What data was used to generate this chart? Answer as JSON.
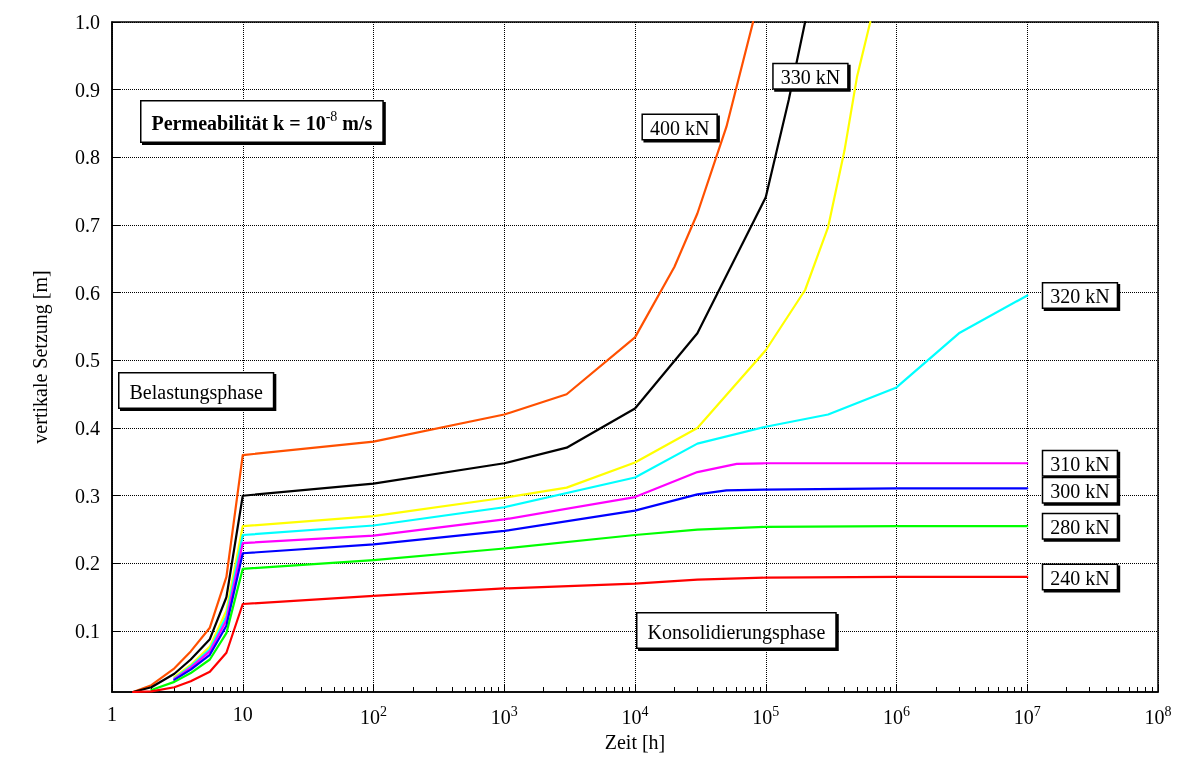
{
  "chart_data": {
    "type": "line",
    "xlabel": "Zeit [h]",
    "ylabel": "vertikale Setzung [m]",
    "log": "x",
    "grid": true,
    "legend": false,
    "marker": "none",
    "line_style": "solid",
    "xlim": [
      1,
      100000000
    ],
    "xticks": [
      1,
      10,
      {
        "value": 100,
        "label": "10$^{2}$"
      },
      {
        "value": 1000,
        "label": "10$^{3}$"
      },
      {
        "value": 10000,
        "label": "10$^{4}$"
      },
      {
        "value": 100000,
        "label": "10$^{5}$"
      },
      {
        "value": 1000000,
        "label": "10$^{6}$"
      },
      {
        "value": 10000000,
        "label": "10$^{7}$"
      },
      {
        "value": 100000000,
        "label": "10$^{8}$"
      }
    ],
    "ylim": [
      0.01,
      1
    ],
    "yticks": [
      0.1,
      0.2,
      0.3,
      0.4,
      0.5,
      0.6,
      0.7,
      0.8,
      0.9,
      {
        "value": 1,
        "label": "1.0"
      }
    ],
    "annotations": [
      "Permeabilität k = 10$^{-8}$ m/s",
      "Belastungsphase",
      "Konsolidierungsphase"
    ],
    "series": [
      {
        "name": "400 kN",
        "color": "#ff5000",
        "x": [
          1.45,
          2,
          3,
          4,
          5.6,
          7.5,
          10,
          100,
          1000,
          3000,
          10000,
          20000,
          30000,
          50000,
          80000
        ],
        "values": [
          0.01,
          0.02,
          0.045,
          0.07,
          0.105,
          0.18,
          0.36,
          0.38,
          0.42,
          0.45,
          0.534,
          0.638,
          0.717,
          0.845,
          1.0
        ]
      },
      {
        "color": "#000000",
        "x": [
          1.45,
          2,
          3,
          4,
          5.6,
          7.5,
          10,
          100,
          1000,
          3000,
          10000,
          30000,
          100000,
          150000,
          200000
        ],
        "values": [
          0.01,
          0.017,
          0.037,
          0.058,
          0.088,
          0.15,
          0.3,
          0.318,
          0.348,
          0.371,
          0.429,
          0.54,
          0.741,
          0.885,
          1.0
        ]
      },
      {
        "name": "330 kN",
        "color": "#ffff00",
        "x": [
          3,
          4,
          5.6,
          7.5,
          10,
          100,
          1000,
          3000,
          10000,
          30000,
          100000,
          200000,
          300000,
          400000,
          500000,
          630000
        ],
        "values": [
          0.032,
          0.05,
          0.077,
          0.13,
          0.255,
          0.27,
          0.297,
          0.312,
          0.349,
          0.4,
          0.515,
          0.604,
          0.697,
          0.81,
          0.92,
          1.0
        ]
      },
      {
        "name": "320 kN",
        "color": "#00ffff",
        "x": [
          3,
          4,
          5.6,
          7.5,
          10,
          100,
          1000,
          10000,
          30000,
          100000,
          300000,
          1000000,
          3000000,
          10000000
        ],
        "values": [
          0.03,
          0.048,
          0.073,
          0.122,
          0.242,
          0.256,
          0.283,
          0.327,
          0.377,
          0.402,
          0.42,
          0.46,
          0.54,
          0.596
        ]
      },
      {
        "name": "310 kN",
        "color": "#ff00ff",
        "x": [
          3,
          4,
          5.6,
          7.5,
          10,
          100,
          1000,
          10000,
          30000,
          60000,
          100000,
          1000000,
          10000000
        ],
        "values": [
          0.029,
          0.046,
          0.07,
          0.116,
          0.23,
          0.241,
          0.265,
          0.298,
          0.335,
          0.347,
          0.348,
          0.348,
          0.348
        ]
      },
      {
        "name": "300 kN",
        "color": "#0000ff",
        "x": [
          3,
          4,
          5.6,
          7.5,
          10,
          100,
          1000,
          10000,
          30000,
          50000,
          100000,
          1000000,
          10000000
        ],
        "values": [
          0.028,
          0.043,
          0.065,
          0.108,
          0.215,
          0.228,
          0.248,
          0.278,
          0.302,
          0.308,
          0.309,
          0.311,
          0.311
        ]
      },
      {
        "name": "280 kN",
        "color": "#00ff00",
        "x": [
          2,
          3,
          4,
          5.6,
          7.5,
          10,
          100,
          1000,
          10000,
          30000,
          100000,
          1000000,
          10000000
        ],
        "values": [
          0.013,
          0.025,
          0.038,
          0.058,
          0.097,
          0.192,
          0.205,
          0.222,
          0.242,
          0.25,
          0.254,
          0.255,
          0.255
        ]
      },
      {
        "name": "240 kN",
        "color": "#ff0000",
        "x": [
          1.45,
          2,
          3,
          4,
          5.6,
          7.5,
          10,
          100,
          1000,
          10000,
          30000,
          100000,
          1000000,
          10000000
        ],
        "values": [
          0.01,
          0.011,
          0.017,
          0.026,
          0.04,
          0.068,
          0.14,
          0.152,
          0.163,
          0.17,
          0.176,
          0.179,
          0.18,
          0.18
        ]
      }
    ]
  }
}
